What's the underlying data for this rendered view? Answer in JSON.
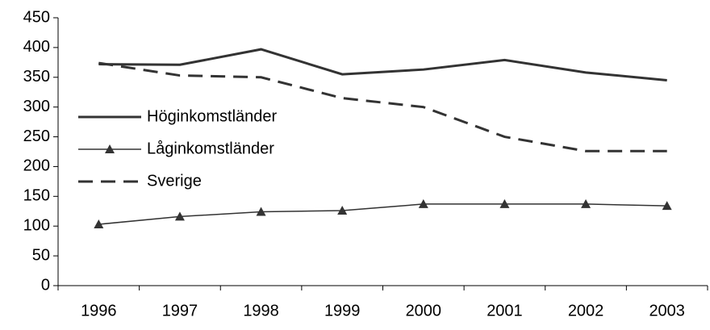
{
  "chart_data": {
    "type": "line",
    "categories": [
      "1996",
      "1997",
      "1998",
      "1999",
      "2000",
      "2001",
      "2002",
      "2003"
    ],
    "series": [
      {
        "name": "Höginkomstländer",
        "color": "#333333",
        "line_style": "solid",
        "marker": "none",
        "width": 3,
        "values": [
          372,
          371,
          397,
          355,
          363,
          379,
          358,
          345
        ]
      },
      {
        "name": "Låginkomstländer",
        "color": "#333333",
        "line_style": "solid",
        "marker": "triangle",
        "width": 1.5,
        "values": [
          103,
          116,
          124,
          126,
          137,
          137,
          137,
          134
        ]
      },
      {
        "name": "Sverige",
        "color": "#333333",
        "line_style": "dashed",
        "marker": "none",
        "width": 3,
        "values": [
          374,
          353,
          350,
          315,
          300,
          250,
          226,
          226
        ]
      }
    ],
    "ylim": [
      0,
      450
    ],
    "yticks": [
      0,
      50,
      100,
      150,
      200,
      250,
      300,
      350,
      400,
      450
    ],
    "grid": false,
    "legend": "left"
  }
}
